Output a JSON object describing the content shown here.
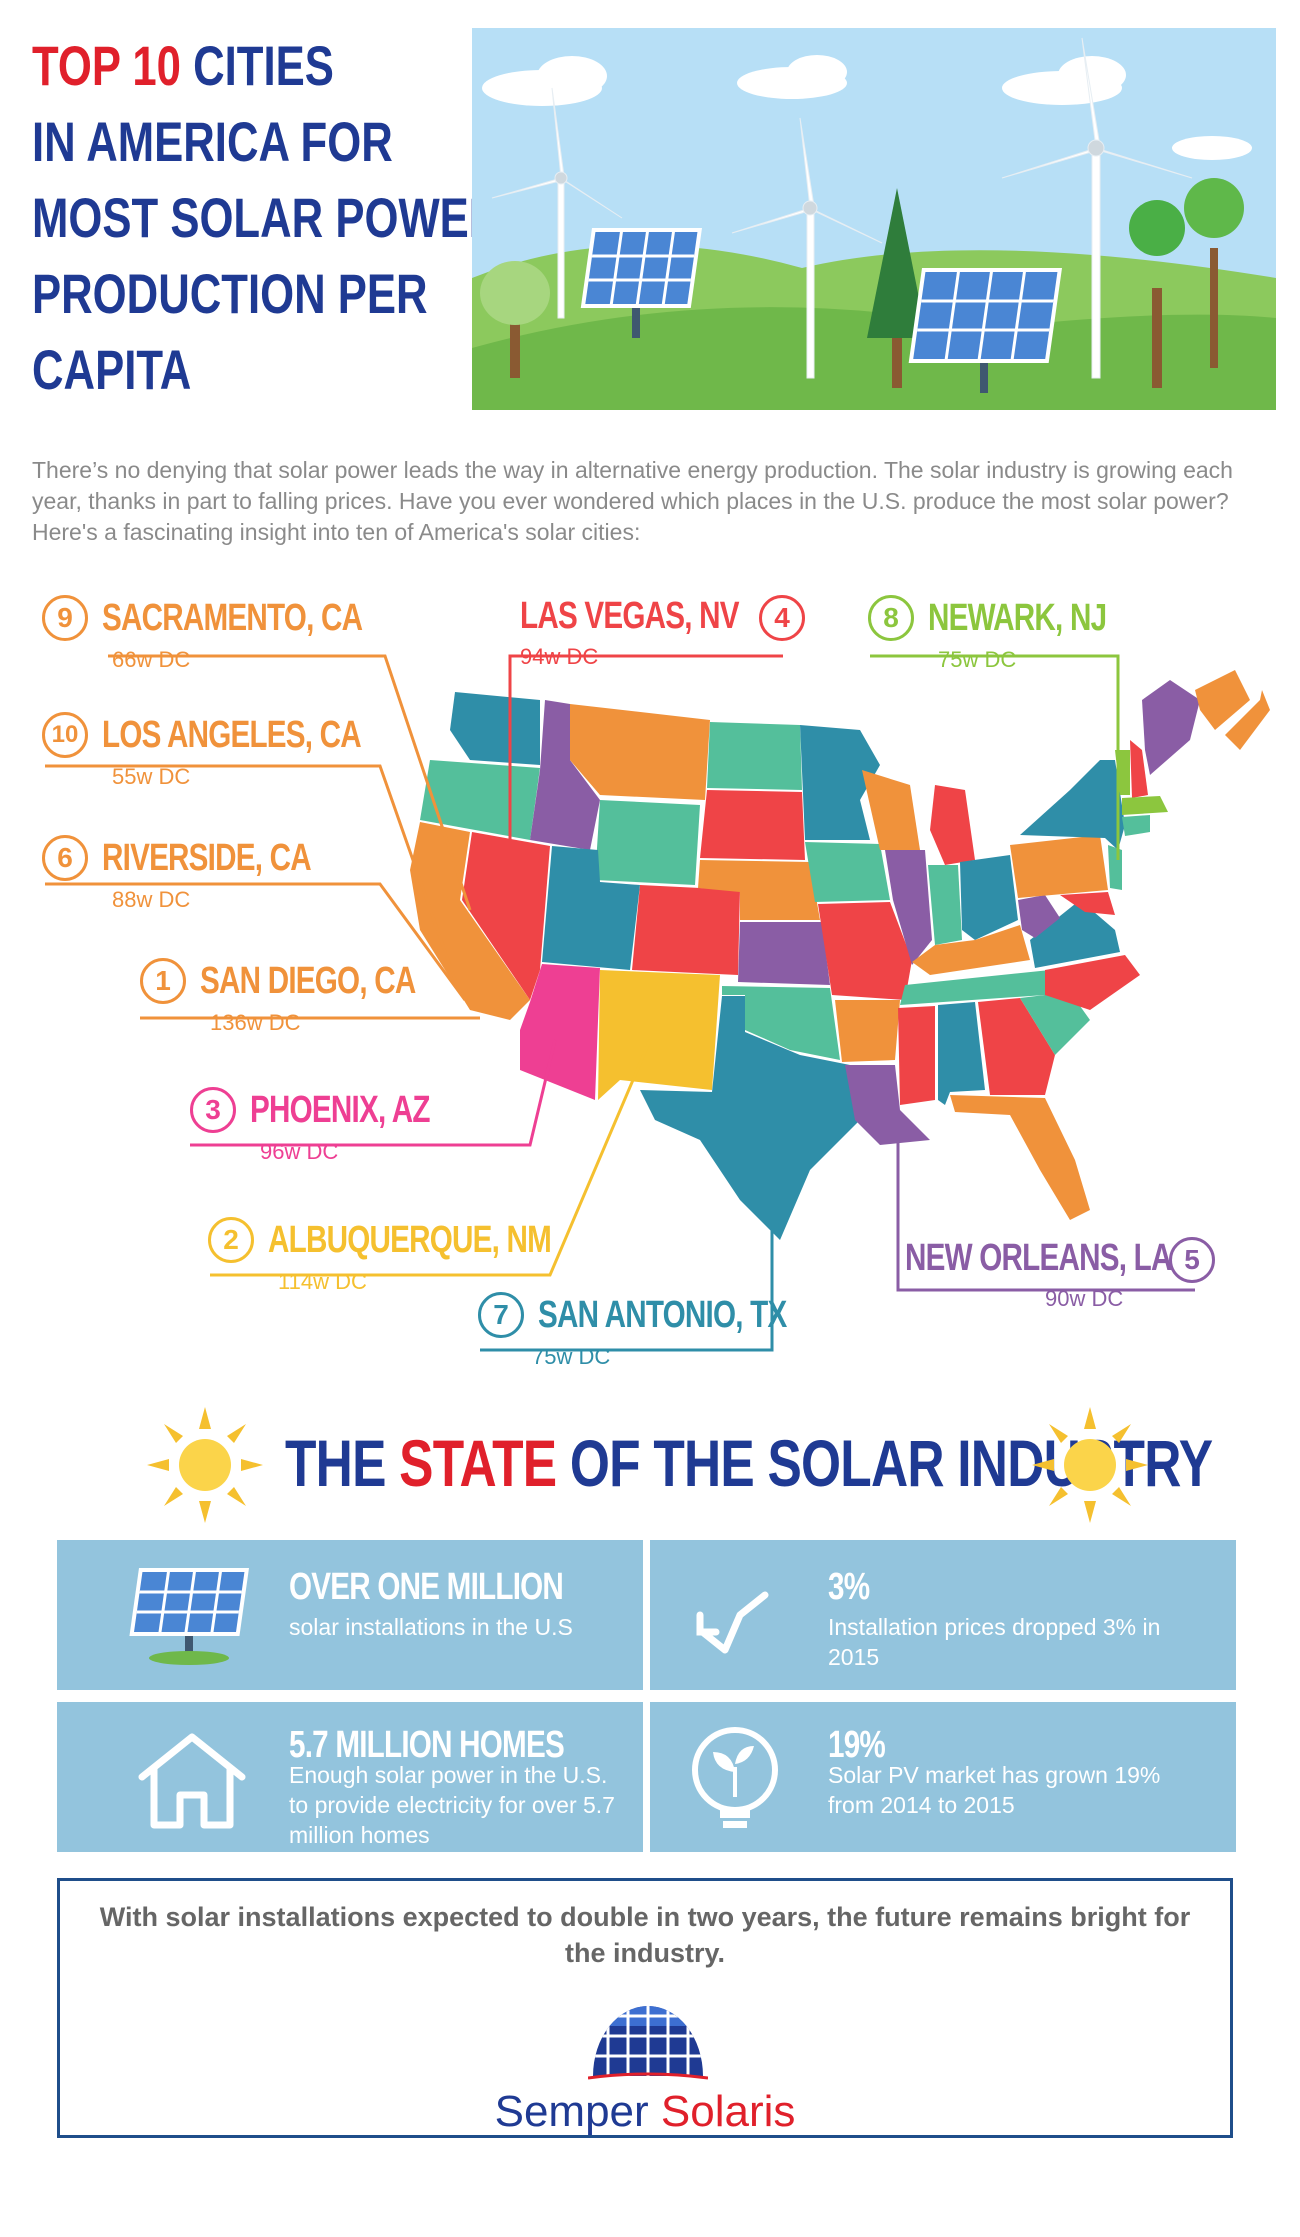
{
  "header": {
    "title_top_red": "TOP 10",
    "title_top_rest": " CITIES",
    "title_lines": [
      "IN AMERICA FOR",
      "MOST SOLAR POWER",
      "PRODUCTION PER",
      "CAPITA"
    ]
  },
  "intro": "There’s no denying that solar power leads the way in alternative energy production. The solar industry is growing each year, thanks in part to falling prices. Have you ever wondered which places in the U.S. produce the most solar power? Here's a fascinating insight into ten of America's solar cities:",
  "cities": [
    {
      "rank": "9",
      "name": "SACRAMENTO, CA",
      "value": "66w DC",
      "color": "#f0923b"
    },
    {
      "rank": "10",
      "name": "LOS ANGELES, CA",
      "value": "55w DC",
      "color": "#f0923b"
    },
    {
      "rank": "6",
      "name": "RIVERSIDE, CA",
      "value": "88w DC",
      "color": "#f0923b"
    },
    {
      "rank": "1",
      "name": "SAN DIEGO, CA",
      "value": "136w DC",
      "color": "#f0923b"
    },
    {
      "rank": "3",
      "name": "PHOENIX, AZ",
      "value": "96w DC",
      "color": "#ee3f93"
    },
    {
      "rank": "2",
      "name": "ALBUQUERQUE, NM",
      "value": "114w DC",
      "color": "#f5c02f"
    },
    {
      "rank": "7",
      "name": "SAN ANTONIO, TX",
      "value": "75w DC",
      "color": "#2f8ea8"
    },
    {
      "rank": "4",
      "name": "LAS VEGAS, NV",
      "value": "94w DC",
      "color": "#ef4447"
    },
    {
      "rank": "8",
      "name": "NEWARK, NJ",
      "value": "75w DC",
      "color": "#8cc63e"
    },
    {
      "rank": "5",
      "name": "NEW ORLEANS, LA",
      "value": "90w DC",
      "color": "#8a5da5"
    }
  ],
  "state_section": {
    "title_pre": "THE ",
    "title_red": "STATE",
    "title_post": " OF THE SOLAR INDUSTRY"
  },
  "stats": [
    {
      "head": "OVER ONE MILLION",
      "desc": "solar installations in the U.S",
      "icon": "solar-panel-icon"
    },
    {
      "head": "3%",
      "desc": "Installation prices dropped 3% in 2015",
      "icon": "down-arrow-icon"
    },
    {
      "head": "5.7 MILLION HOMES",
      "desc": "Enough solar power in the U.S. to provide electricity for over 5.7 million homes",
      "icon": "house-icon"
    },
    {
      "head": "19%",
      "desc": "Solar PV market has grown 19% from 2014 to 2015",
      "icon": "bulb-sprout-icon"
    }
  ],
  "footer": {
    "message": "With solar installations expected to double in two years, the future remains bright for the industry.",
    "logo_part1": "Semper ",
    "logo_part2": "Solaris"
  },
  "colors": {
    "navy": "#1f3a93",
    "red": "#e0202b",
    "stat_bg": "#93c4dd"
  }
}
